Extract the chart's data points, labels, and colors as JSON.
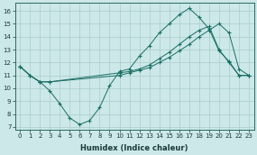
{
  "xlabel": "Humidex (Indice chaleur)",
  "bg_color": "#cce8e8",
  "line_color": "#1a6e64",
  "grid_color": "#aacccc",
  "xlim": [
    -0.5,
    23.5
  ],
  "ylim": [
    6.8,
    16.6
  ],
  "yticks": [
    7,
    8,
    9,
    10,
    11,
    12,
    13,
    14,
    15,
    16
  ],
  "xticks": [
    0,
    1,
    2,
    3,
    4,
    5,
    6,
    7,
    8,
    9,
    10,
    11,
    12,
    13,
    14,
    15,
    16,
    17,
    18,
    19,
    20,
    21,
    22,
    23
  ],
  "line1_x": [
    0,
    1,
    2,
    3,
    4,
    5,
    6,
    7,
    8,
    9,
    10,
    11,
    12,
    13,
    14,
    15,
    16,
    17,
    18,
    19,
    20,
    21,
    22,
    23
  ],
  "line1_y": [
    11.7,
    11.0,
    10.5,
    9.8,
    8.8,
    7.7,
    7.2,
    7.5,
    8.5,
    10.2,
    11.3,
    11.5,
    12.5,
    13.3,
    14.3,
    15.0,
    15.7,
    16.2,
    15.5,
    14.6,
    12.9,
    12.1,
    11.0,
    11.0
  ],
  "line2_x": [
    0,
    1,
    2,
    3,
    10,
    11,
    12,
    13,
    14,
    15,
    16,
    17,
    18,
    19,
    20,
    21,
    22,
    23
  ],
  "line2_y": [
    11.7,
    11.0,
    10.5,
    10.5,
    11.2,
    11.3,
    11.5,
    11.8,
    12.3,
    12.8,
    13.4,
    14.0,
    14.5,
    14.8,
    13.0,
    12.0,
    11.0,
    11.0
  ],
  "line3_x": [
    0,
    1,
    2,
    3,
    10,
    11,
    12,
    13,
    14,
    15,
    16,
    17,
    18,
    19,
    20,
    21,
    22,
    23
  ],
  "line3_y": [
    11.7,
    11.0,
    10.5,
    10.5,
    11.0,
    11.2,
    11.4,
    11.6,
    12.0,
    12.4,
    12.9,
    13.4,
    14.0,
    14.5,
    15.0,
    14.3,
    11.5,
    11.0
  ],
  "tick_fontsize": 5.0,
  "xlabel_fontsize": 6.0,
  "tick_color": "#1a3a3a",
  "spine_color": "#2a6a60"
}
